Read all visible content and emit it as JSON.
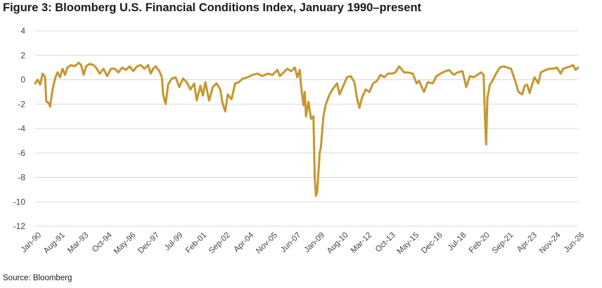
{
  "figure": {
    "title": "Figure 3: Bloomberg U.S. Financial Conditions Index, January 1990–present",
    "source": "Source: Bloomberg"
  },
  "chart_data": {
    "type": "line",
    "title": "Figure 3: Bloomberg U.S. Financial Conditions Index, January 1990–present",
    "xlabel": "",
    "ylabel": "",
    "ylim": [
      -12,
      4
    ],
    "yticks": [
      4,
      2,
      0,
      -2,
      -4,
      -6,
      -8,
      -10,
      -12
    ],
    "xlim": [
      "1990-01",
      "2026-06"
    ],
    "xtick_labels": [
      "Jan-90",
      "Aug-91",
      "Mar-93",
      "Oct-94",
      "May-96",
      "Dec-97",
      "Jul-99",
      "Feb-01",
      "Sep-02",
      "Apr-04",
      "Nov-05",
      "Jun-07",
      "Jan-09",
      "Aug-10",
      "Mar-12",
      "Oct-13",
      "May-15",
      "Dec-16",
      "Jul-18",
      "Feb-20",
      "Sep-21",
      "Apr-23",
      "Nov-24",
      "Jun-26"
    ],
    "xtick_dates": [
      "1990-01",
      "1991-08",
      "1993-03",
      "1994-10",
      "1996-05",
      "1997-12",
      "1999-07",
      "2001-02",
      "2002-09",
      "2004-04",
      "2005-11",
      "2007-06",
      "2009-01",
      "2010-08",
      "2012-03",
      "2013-10",
      "2015-05",
      "2016-12",
      "2018-07",
      "2020-02",
      "2021-09",
      "2023-04",
      "2024-11",
      "2026-06"
    ],
    "grid": "horizontal",
    "line_color": "#C8962A",
    "series": [
      {
        "points": [
          [
            "1990-01",
            -0.3
          ],
          [
            "1990-03",
            0.0
          ],
          [
            "1990-05",
            -0.4
          ],
          [
            "1990-07",
            0.5
          ],
          [
            "1990-09",
            0.2
          ],
          [
            "1990-10",
            -1.8
          ],
          [
            "1990-12",
            -1.9
          ],
          [
            "1991-01",
            -2.2
          ],
          [
            "1991-03",
            -0.8
          ],
          [
            "1991-05",
            0.1
          ],
          [
            "1991-07",
            0.6
          ],
          [
            "1991-09",
            0.2
          ],
          [
            "1991-11",
            0.9
          ],
          [
            "1992-01",
            0.4
          ],
          [
            "1992-03",
            1.0
          ],
          [
            "1992-06",
            1.2
          ],
          [
            "1992-09",
            1.1
          ],
          [
            "1992-12",
            1.4
          ],
          [
            "1993-02",
            1.2
          ],
          [
            "1993-04",
            0.4
          ],
          [
            "1993-06",
            1.1
          ],
          [
            "1993-09",
            1.3
          ],
          [
            "1993-12",
            1.2
          ],
          [
            "1994-02",
            1.0
          ],
          [
            "1994-05",
            0.5
          ],
          [
            "1994-08",
            0.9
          ],
          [
            "1994-11",
            0.3
          ],
          [
            "1995-02",
            0.9
          ],
          [
            "1995-05",
            0.9
          ],
          [
            "1995-08",
            0.6
          ],
          [
            "1995-11",
            1.0
          ],
          [
            "1996-02",
            0.8
          ],
          [
            "1996-05",
            1.1
          ],
          [
            "1996-08",
            0.7
          ],
          [
            "1996-11",
            1.1
          ],
          [
            "1997-02",
            1.2
          ],
          [
            "1997-05",
            0.9
          ],
          [
            "1997-08",
            1.2
          ],
          [
            "1997-10",
            0.5
          ],
          [
            "1997-12",
            0.9
          ],
          [
            "1998-02",
            1.1
          ],
          [
            "1998-05",
            0.7
          ],
          [
            "1998-07",
            0.2
          ],
          [
            "1998-08",
            -1.2
          ],
          [
            "1998-10",
            -2.0
          ],
          [
            "1998-12",
            -0.4
          ],
          [
            "1999-03",
            0.1
          ],
          [
            "1999-06",
            0.2
          ],
          [
            "1999-09",
            -0.6
          ],
          [
            "1999-12",
            0.1
          ],
          [
            "2000-03",
            -0.2
          ],
          [
            "2000-06",
            -0.8
          ],
          [
            "2000-09",
            -0.3
          ],
          [
            "2000-11",
            -1.7
          ],
          [
            "2001-02",
            -0.5
          ],
          [
            "2001-04",
            -1.3
          ],
          [
            "2001-06",
            -0.2
          ],
          [
            "2001-09",
            -1.7
          ],
          [
            "2001-12",
            -0.6
          ],
          [
            "2002-03",
            -0.3
          ],
          [
            "2002-06",
            -0.8
          ],
          [
            "2002-08",
            -2.0
          ],
          [
            "2002-10",
            -2.6
          ],
          [
            "2002-12",
            -1.2
          ],
          [
            "2003-03",
            -1.6
          ],
          [
            "2003-06",
            -0.3
          ],
          [
            "2003-09",
            -0.2
          ],
          [
            "2003-12",
            0.1
          ],
          [
            "2004-04",
            0.2
          ],
          [
            "2004-08",
            0.4
          ],
          [
            "2004-12",
            0.5
          ],
          [
            "2005-04",
            0.3
          ],
          [
            "2005-08",
            0.5
          ],
          [
            "2005-12",
            0.4
          ],
          [
            "2006-04",
            0.8
          ],
          [
            "2006-06",
            0.3
          ],
          [
            "2006-09",
            0.6
          ],
          [
            "2006-12",
            0.9
          ],
          [
            "2007-03",
            0.7
          ],
          [
            "2007-06",
            1.0
          ],
          [
            "2007-08",
            0.2
          ],
          [
            "2007-10",
            0.8
          ],
          [
            "2007-11",
            -0.5
          ],
          [
            "2008-01",
            -2.1
          ],
          [
            "2008-02",
            -1.0
          ],
          [
            "2008-03",
            -3.0
          ],
          [
            "2008-05",
            -1.8
          ],
          [
            "2008-07",
            -3.2
          ],
          [
            "2008-09",
            -3.0
          ],
          [
            "2008-10",
            -8.0
          ],
          [
            "2008-11",
            -9.5
          ],
          [
            "2008-12",
            -9.2
          ],
          [
            "2009-02",
            -6.0
          ],
          [
            "2009-03",
            -5.5
          ],
          [
            "2009-05",
            -3.0
          ],
          [
            "2009-07",
            -2.0
          ],
          [
            "2009-10",
            -1.2
          ],
          [
            "2010-01",
            -0.7
          ],
          [
            "2010-04",
            -0.3
          ],
          [
            "2010-06",
            -1.2
          ],
          [
            "2010-09",
            -0.5
          ],
          [
            "2010-12",
            0.2
          ],
          [
            "2011-03",
            0.3
          ],
          [
            "2011-06",
            -0.2
          ],
          [
            "2011-08",
            -1.5
          ],
          [
            "2011-10",
            -2.3
          ],
          [
            "2011-12",
            -1.5
          ],
          [
            "2012-03",
            -0.8
          ],
          [
            "2012-06",
            -1.0
          ],
          [
            "2012-09",
            -0.3
          ],
          [
            "2012-12",
            -0.1
          ],
          [
            "2013-03",
            0.4
          ],
          [
            "2013-06",
            0.2
          ],
          [
            "2013-09",
            0.5
          ],
          [
            "2013-12",
            0.5
          ],
          [
            "2014-03",
            0.6
          ],
          [
            "2014-06",
            1.1
          ],
          [
            "2014-10",
            0.6
          ],
          [
            "2015-01",
            0.6
          ],
          [
            "2015-05",
            0.5
          ],
          [
            "2015-08",
            -0.3
          ],
          [
            "2015-10",
            -0.1
          ],
          [
            "2016-01",
            -0.8
          ],
          [
            "2016-02",
            -1.0
          ],
          [
            "2016-05",
            -0.2
          ],
          [
            "2016-09",
            -0.3
          ],
          [
            "2016-12",
            0.3
          ],
          [
            "2017-05",
            0.6
          ],
          [
            "2017-10",
            0.8
          ],
          [
            "2018-02",
            0.4
          ],
          [
            "2018-05",
            0.6
          ],
          [
            "2018-09",
            0.7
          ],
          [
            "2018-12",
            -0.6
          ],
          [
            "2019-03",
            0.3
          ],
          [
            "2019-06",
            0.2
          ],
          [
            "2019-09",
            0.4
          ],
          [
            "2019-12",
            0.6
          ],
          [
            "2020-02",
            0.4
          ],
          [
            "2020-03",
            -3.0
          ],
          [
            "2020-04",
            -5.3
          ],
          [
            "2020-05",
            -1.5
          ],
          [
            "2020-07",
            -0.4
          ],
          [
            "2020-09",
            -0.1
          ],
          [
            "2020-12",
            0.5
          ],
          [
            "2021-03",
            1.0
          ],
          [
            "2021-06",
            1.1
          ],
          [
            "2021-09",
            1.0
          ],
          [
            "2021-12",
            0.9
          ],
          [
            "2022-02",
            0.3
          ],
          [
            "2022-04",
            -0.3
          ],
          [
            "2022-06",
            -1.0
          ],
          [
            "2022-09",
            -1.2
          ],
          [
            "2022-11",
            -0.5
          ],
          [
            "2023-01",
            -0.4
          ],
          [
            "2023-03",
            -1.1
          ],
          [
            "2023-05",
            -0.4
          ],
          [
            "2023-07",
            0.2
          ],
          [
            "2023-10",
            -0.3
          ],
          [
            "2023-12",
            0.6
          ],
          [
            "2024-04",
            0.8
          ],
          [
            "2024-07",
            0.9
          ],
          [
            "2024-10",
            0.9
          ],
          [
            "2025-01",
            1.0
          ],
          [
            "2025-04",
            0.5
          ],
          [
            "2025-06",
            0.9
          ],
          [
            "2025-09",
            1.0
          ],
          [
            "2025-12",
            1.1
          ],
          [
            "2026-02",
            1.2
          ],
          [
            "2026-04",
            0.8
          ],
          [
            "2026-06",
            1.0
          ]
        ]
      }
    ]
  }
}
